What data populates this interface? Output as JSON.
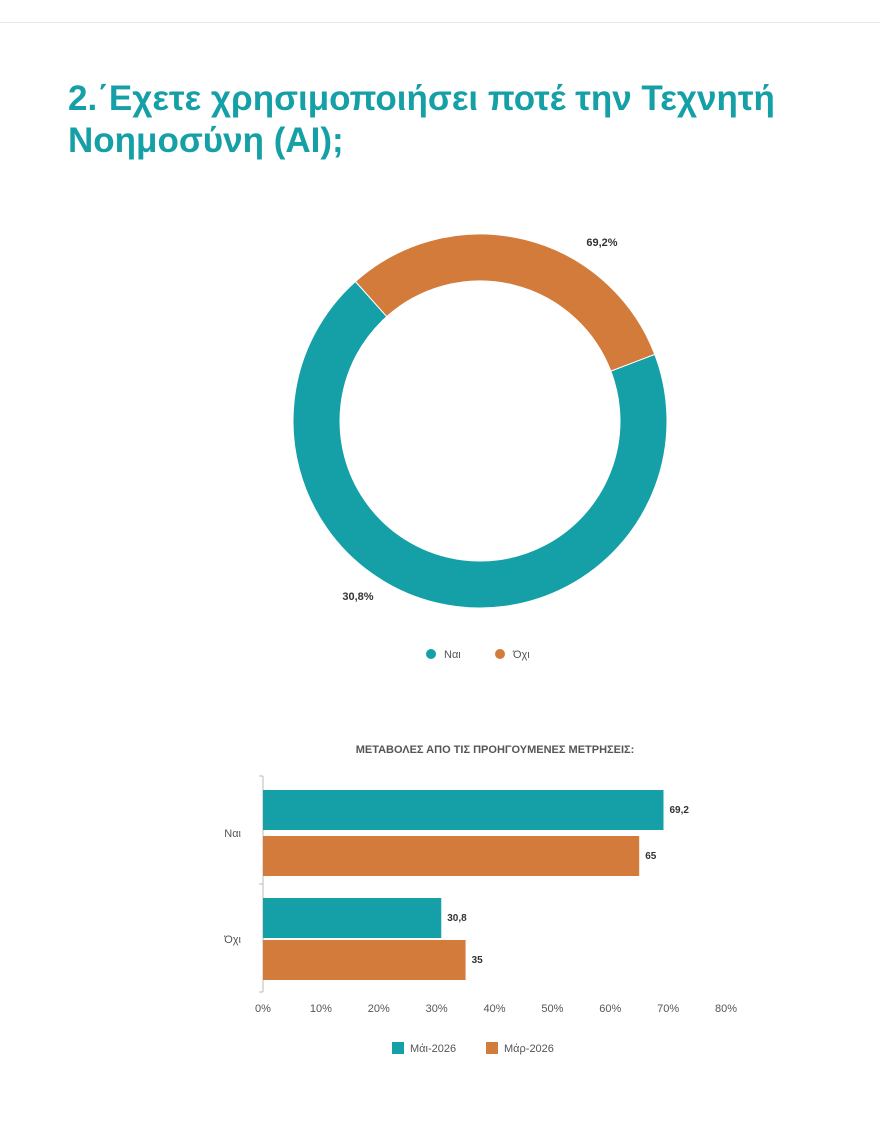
{
  "page": {
    "title": "2.΄Εχετε χρησιμοποιήσει ποτέ την Τεχνητή Νοημοσύνη (AI);"
  },
  "chart_data": [
    {
      "type": "pie",
      "variant": "donut",
      "categories": [
        "Ναι",
        "Όχι"
      ],
      "values": [
        69.2,
        30.8
      ],
      "value_labels": [
        "69,2%",
        "30,8%"
      ],
      "colors": [
        "#159fa7",
        "#d27b3a"
      ],
      "legend": {
        "placement": "bottom",
        "entries": [
          "Ναι",
          "Όχι"
        ]
      }
    },
    {
      "type": "bar",
      "orientation": "horizontal",
      "title": "ΜΕΤΑΒΟΛΕΣ ΑΠΟ ΤΙΣ ΠΡΟΗΓΟΥΜΕΝΕΣ ΜΕΤΡΗΣΕΙΣ:",
      "categories": [
        "Ναι",
        "Όχι"
      ],
      "series": [
        {
          "name": "Μάι-2026",
          "values": [
            69.2,
            30.8
          ],
          "labels": [
            "69,2",
            "30,8"
          ],
          "color": "#159fa7"
        },
        {
          "name": "Μάρ-2026",
          "values": [
            65,
            35
          ],
          "labels": [
            "65",
            "35"
          ],
          "color": "#d27b3a"
        }
      ],
      "xlim": [
        0,
        80
      ],
      "xticks": [
        0,
        10,
        20,
        30,
        40,
        50,
        60,
        70,
        80
      ],
      "xtick_labels": [
        "0%",
        "10%",
        "20%",
        "30%",
        "40%",
        "50%",
        "60%",
        "70%",
        "80%"
      ],
      "grid": false,
      "legend": {
        "placement": "bottom"
      }
    }
  ]
}
